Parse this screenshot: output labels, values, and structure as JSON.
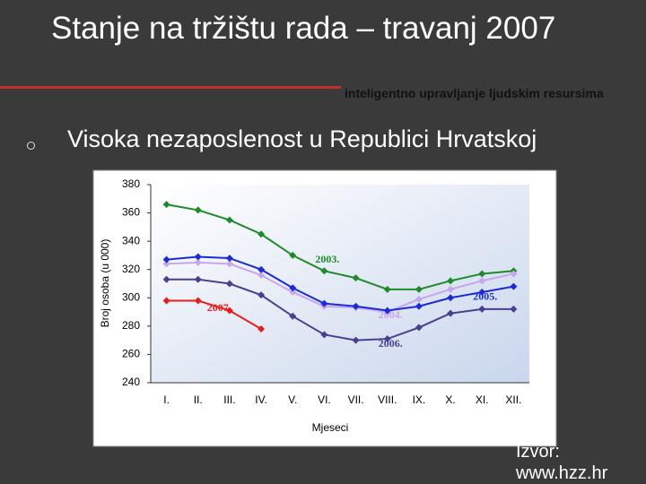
{
  "slide": {
    "title": "Stanje na tržištu rada – travanj 2007",
    "tagline": "inteligentno upravljanje ljudskim resursima",
    "bullet": "Visoka nezaposlenost u Republici Hrvatskoj",
    "source": "Izvor: www.hzz.hr"
  },
  "chart_data": {
    "type": "line",
    "categories": [
      "I.",
      "II.",
      "III.",
      "IV.",
      "V.",
      "VI.",
      "VII.",
      "VIII.",
      "IX.",
      "X.",
      "XI.",
      "XII."
    ],
    "ylabel": "Broj osoba (u 000)",
    "xlabel": "Mjeseci",
    "ylim": [
      240,
      380
    ],
    "yticks": [
      240,
      260,
      280,
      300,
      320,
      340,
      360,
      380
    ],
    "series": [
      {
        "name": "2003.",
        "color": "#1f8a2a",
        "values": [
          366,
          362,
          355,
          345,
          330,
          319,
          314,
          306,
          306,
          312,
          317,
          319
        ]
      },
      {
        "name": "2004.",
        "color": "#c7a6ec",
        "values": [
          324,
          325,
          324,
          316,
          304,
          294,
          293,
          290,
          299,
          306,
          312,
          317
        ]
      },
      {
        "name": "2005.",
        "color": "#1c2bd6",
        "values": [
          327,
          329,
          328,
          320,
          307,
          296,
          294,
          291,
          294,
          300,
          304,
          308
        ]
      },
      {
        "name": "2006.",
        "color": "#4a3f8f",
        "values": [
          313,
          313,
          310,
          302,
          287,
          274,
          270,
          271,
          279,
          289,
          292,
          292
        ]
      },
      {
        "name": "2007.",
        "color": "#e41e1e",
        "values": [
          298,
          298,
          291,
          278,
          null,
          null,
          null,
          null,
          null,
          null,
          null,
          null
        ]
      }
    ]
  }
}
